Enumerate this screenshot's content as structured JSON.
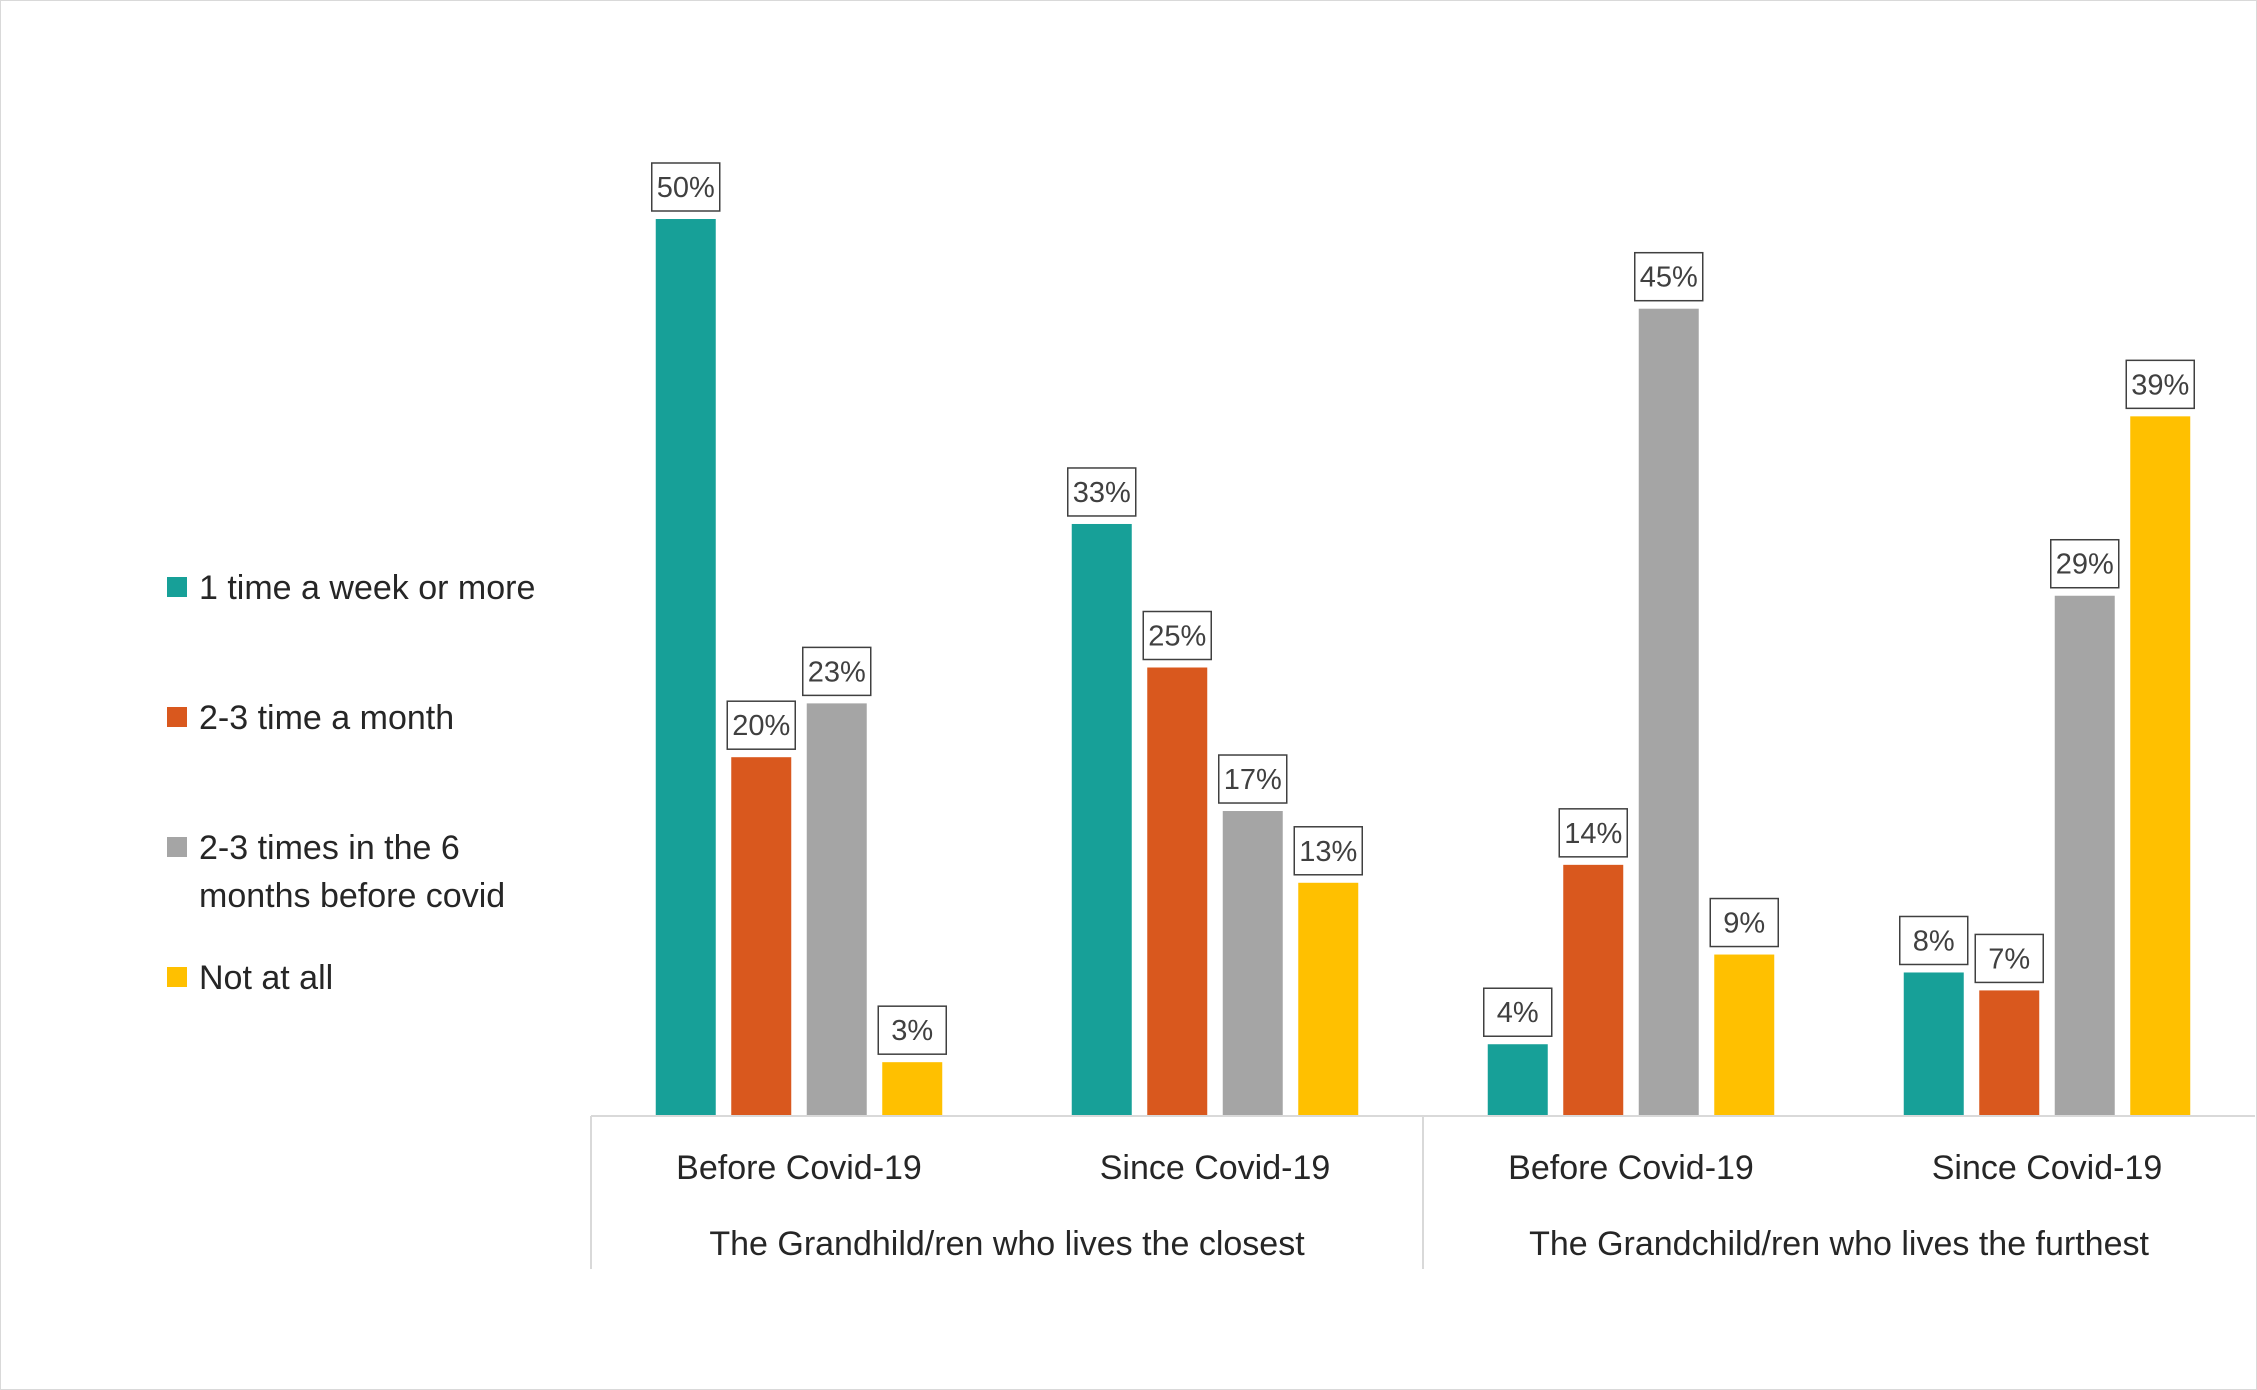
{
  "chart_data": {
    "type": "bar",
    "title": "",
    "xlabel": "",
    "ylabel": "",
    "ylim": [
      0,
      50
    ],
    "grid": false,
    "legend_position": "left",
    "groups": [
      {
        "label": "The Grandhild/ren who lives the closest",
        "categories": [
          "Before Covid-19",
          "Since Covid-19"
        ]
      },
      {
        "label": "The Grandchild/ren who lives the furthest",
        "categories": [
          "Before Covid-19",
          "Since Covid-19"
        ]
      }
    ],
    "categories": [
      "Before Covid-19",
      "Since Covid-19",
      "Before Covid-19",
      "Since Covid-19"
    ],
    "series": [
      {
        "name": "1 time a week or more",
        "legend_lines": [
          "1 time a week or more"
        ],
        "color": "#17a098",
        "values": [
          50,
          33,
          4,
          8
        ],
        "labels": [
          "50%",
          "33%",
          "4%",
          "8%"
        ]
      },
      {
        "name": "2-3 time a month",
        "legend_lines": [
          "2-3 time a month"
        ],
        "color": "#d9581e",
        "values": [
          20,
          25,
          14,
          7
        ],
        "labels": [
          "20%",
          "25%",
          "14%",
          "7%"
        ]
      },
      {
        "name": "2-3 times in the 6 months before covid",
        "legend_lines": [
          "2-3 times in the 6",
          "months before covid"
        ],
        "color": "#a5a5a5",
        "values": [
          23,
          17,
          45,
          29
        ],
        "labels": [
          "23%",
          "17%",
          "45%",
          "29%"
        ]
      },
      {
        "name": "Not at all",
        "legend_lines": [
          "Not at all"
        ],
        "color": "#ffc000",
        "values": [
          3,
          13,
          9,
          39
        ],
        "labels": [
          "3%",
          "13%",
          "9%",
          "39%"
        ]
      }
    ]
  }
}
